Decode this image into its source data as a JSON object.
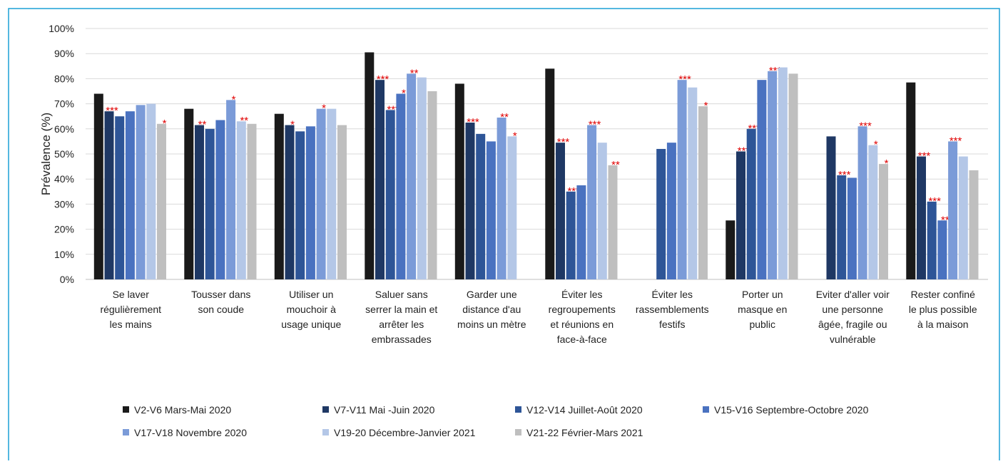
{
  "chart_data": {
    "type": "bar",
    "y_label": "Prévalence (%)",
    "categories": [
      "Se laver\nrégulièrement\nles mains",
      "Tousser dans\nson coude",
      "Utiliser un\nmouchoir à\nusage unique",
      "Saluer sans\nserrer la main et\narrêter les\nembrassades",
      "Garder une\ndistance d'au\nmoins un mètre",
      "Éviter les\nregroupements\net réunions en\nface-à-face",
      "Éviter les\nrassemblements\nfestifs",
      "Porter un\nmasque en\npublic",
      "Eviter d'aller voir\nune personne\nâgée, fragile ou\nvulnérable",
      "Rester confiné\nle plus possible\nà la maison"
    ],
    "series": [
      {
        "name": "V2-V6 Mars-Mai 2020",
        "color": "#1a1a1a",
        "values": [
          74,
          68,
          66,
          90.5,
          78,
          84,
          null,
          23.5,
          null,
          78.5
        ],
        "stars": [
          null,
          null,
          null,
          null,
          null,
          null,
          null,
          null,
          null,
          null
        ]
      },
      {
        "name": "V7-V11 Mai -Juin 2020",
        "color": "#1f3864",
        "values": [
          67,
          61.5,
          61.5,
          79.5,
          62.5,
          54.5,
          null,
          51,
          57,
          49
        ],
        "stars": [
          "***",
          "**",
          "*",
          "***",
          "***",
          "***",
          null,
          "***",
          null,
          "***"
        ]
      },
      {
        "name": "V12-V14 Juillet-Août 2020",
        "color": "#2e5597",
        "values": [
          65,
          60,
          59,
          67.5,
          58,
          35,
          52,
          60,
          41.5,
          31
        ],
        "stars": [
          null,
          null,
          null,
          "***",
          null,
          "***",
          null,
          "***",
          "***",
          "***"
        ]
      },
      {
        "name": "V15-V16 Septembre-Octobre 2020",
        "color": "#4a72c0",
        "values": [
          67,
          63.5,
          61,
          74,
          55,
          37.5,
          54.5,
          79.5,
          40.5,
          23.5
        ],
        "stars": [
          null,
          null,
          null,
          "*",
          null,
          null,
          null,
          null,
          null,
          "**"
        ]
      },
      {
        "name": "V17-V18 Novembre 2020",
        "color": "#7b9bd8",
        "values": [
          69.5,
          71.5,
          68,
          82,
          64.5,
          61.5,
          79.5,
          83,
          61,
          55
        ],
        "stars": [
          null,
          "*",
          "*",
          "**",
          "**",
          "***",
          "***",
          "***",
          "***",
          "***"
        ]
      },
      {
        "name": "V19-20 Décembre-Janvier 2021",
        "color": "#b4c7e7",
        "values": [
          70,
          63,
          68,
          80.5,
          57,
          54.5,
          76.5,
          84.5,
          53.5,
          49
        ],
        "stars": [
          null,
          "**",
          null,
          null,
          "*",
          null,
          null,
          null,
          "*",
          null
        ]
      },
      {
        "name": "V21-22 Février-Mars 2021",
        "color": "#bfbfbf",
        "values": [
          62,
          62,
          61.5,
          75,
          null,
          45.5,
          69,
          82,
          46,
          43.5
        ],
        "stars": [
          "*",
          null,
          null,
          null,
          null,
          "**",
          "*",
          null,
          "*",
          null
        ]
      }
    ],
    "ylim": [
      0,
      100
    ],
    "yticks": [
      {
        "value": 0,
        "label": "0%"
      },
      {
        "value": 10,
        "label": "10%"
      },
      {
        "value": 20,
        "label": "20%"
      },
      {
        "value": 30,
        "label": "30%"
      },
      {
        "value": 40,
        "label": "40%"
      },
      {
        "value": 50,
        "label": "50%"
      },
      {
        "value": 60,
        "label": "60%"
      },
      {
        "value": 70,
        "label": "70%"
      },
      {
        "value": 80,
        "label": "80%"
      },
      {
        "value": 90,
        "label": "90%"
      },
      {
        "value": 100,
        "label": "100%"
      }
    ],
    "grid": true,
    "star_color": "#e00000"
  }
}
